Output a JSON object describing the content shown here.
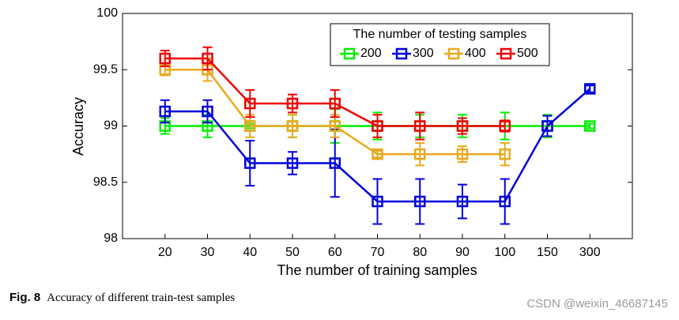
{
  "chart_data": {
    "type": "line",
    "y_label": "Accuracy",
    "x_label": "The number of training samples",
    "legend_title": "The number of testing samples",
    "categories": [
      "20",
      "30",
      "40",
      "50",
      "60",
      "70",
      "80",
      "90",
      "100",
      "150",
      "300"
    ],
    "series": [
      {
        "name": "200",
        "color": "#00ee00",
        "values": [
          99,
          99,
          99,
          99,
          99,
          99,
          99,
          99,
          99,
          99,
          99
        ],
        "errors": [
          0.07,
          0.1,
          0.02,
          0.1,
          0.15,
          0.12,
          0.1,
          0.1,
          0.12,
          0.1,
          0.02
        ]
      },
      {
        "name": "300",
        "color": "#0000dd",
        "values": [
          99.13,
          99.13,
          98.67,
          98.67,
          98.67,
          98.33,
          98.33,
          98.33,
          98.33,
          99,
          99.33
        ],
        "errors": [
          0.1,
          0.1,
          0.2,
          0.1,
          0.3,
          0.2,
          0.2,
          0.15,
          0.2,
          0.09,
          0.03
        ]
      },
      {
        "name": "400",
        "color": "#e8a81e",
        "values": [
          99.5,
          99.5,
          99,
          99,
          99,
          98.75,
          98.75,
          98.75,
          98.75,
          null,
          null
        ],
        "errors": [
          0.05,
          0.1,
          0.1,
          0.1,
          0.1,
          0.03,
          0.1,
          0.07,
          0.1,
          null,
          null
        ]
      },
      {
        "name": "500",
        "color": "#ee0000",
        "values": [
          99.6,
          99.6,
          99.2,
          99.2,
          99.2,
          99,
          99,
          99,
          99,
          null,
          null
        ],
        "errors": [
          0.07,
          0.1,
          0.12,
          0.08,
          0.12,
          0.1,
          0.12,
          0.07,
          0.05,
          null,
          null
        ]
      }
    ],
    "ylim": [
      98,
      100
    ],
    "yticks": [
      98,
      98.5,
      99,
      99.5,
      100
    ],
    "grid": false,
    "legend": "top-right"
  },
  "caption": {
    "label": "Fig. 8",
    "text": "Accuracy of different train-test samples"
  },
  "watermark": "CSDN @weixin_46687145"
}
